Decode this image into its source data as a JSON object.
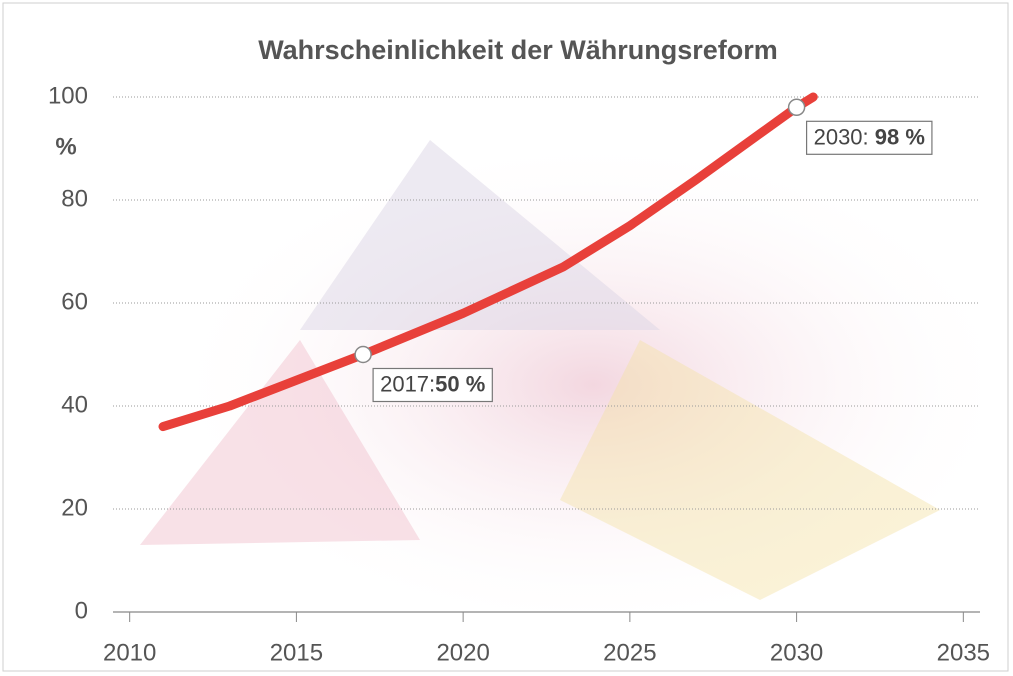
{
  "chart_data": {
    "type": "line",
    "title": "Wahrscheinlichkeit der Währungsreform",
    "y_label": "%",
    "x": [
      2011,
      2013,
      2015,
      2017,
      2020,
      2023,
      2025,
      2027,
      2030,
      2030.5
    ],
    "series": [
      {
        "color": "#e8403a",
        "values": [
          36,
          40,
          45,
          50,
          58,
          67,
          75,
          84,
          98,
          100
        ]
      }
    ],
    "xlim": [
      2009.5,
      2035.5
    ],
    "xticks": [
      2010,
      2015,
      2020,
      2025,
      2030,
      2035
    ],
    "ylim": [
      0,
      100
    ],
    "yticks": [
      0,
      20,
      40,
      60,
      80,
      100
    ],
    "grid": true,
    "annotations": [
      {
        "x": 2017,
        "y": 50,
        "prefix": "2017:",
        "text": "50 %"
      },
      {
        "x": 2030,
        "y": 98,
        "prefix": "2030: ",
        "text": "98 %"
      }
    ]
  }
}
